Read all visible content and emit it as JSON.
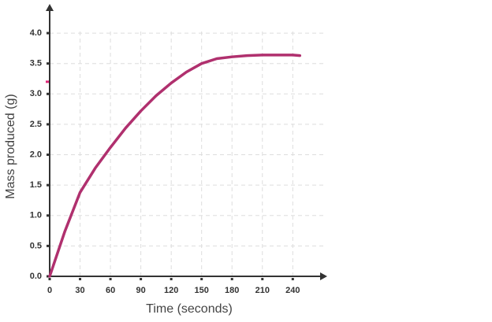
{
  "chart_data": {
    "type": "line",
    "x_label": "Time (seconds)",
    "y_label": "Mass produced (g)",
    "x": [
      0,
      15,
      30,
      45,
      60,
      75,
      90,
      105,
      120,
      135,
      150,
      165,
      180,
      195,
      210,
      225,
      240,
      247
    ],
    "series": [
      {
        "color": "#b0306e",
        "values": [
          0,
          0.74,
          1.38,
          1.78,
          2.12,
          2.44,
          2.72,
          2.97,
          3.18,
          3.36,
          3.5,
          3.58,
          3.61,
          3.63,
          3.64,
          3.64,
          3.64,
          3.63
        ]
      }
    ],
    "xlim": [
      0,
      274
    ],
    "ylim": [
      0,
      4.48
    ],
    "xticks": [
      0,
      30,
      60,
      90,
      120,
      150,
      180,
      210,
      240
    ],
    "yticks": [
      {
        "value": 0,
        "label": "0.0"
      },
      {
        "value": 0.5,
        "label": "0.5"
      },
      {
        "value": 1,
        "label": "1.0"
      },
      {
        "value": 1.5,
        "label": "1.5"
      },
      {
        "value": 2,
        "label": "2.0"
      },
      {
        "value": 2.5,
        "label": "2.5"
      },
      {
        "value": 3,
        "label": "3.0"
      },
      {
        "value": 3.5,
        "label": "3.5"
      },
      {
        "value": 4,
        "label": "4.0"
      }
    ],
    "grid": true,
    "highlight_y": 3.2,
    "highlight_color": "#e0287a"
  }
}
